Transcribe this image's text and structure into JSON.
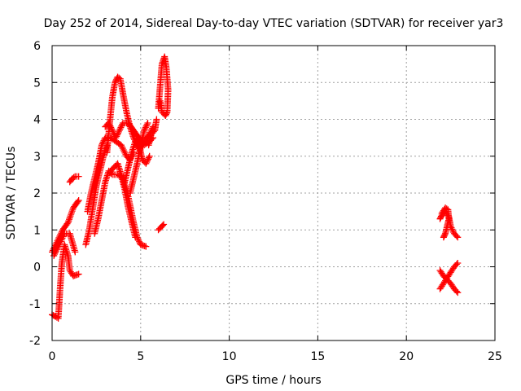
{
  "chart_data": {
    "type": "scatter",
    "title": "Day 252 of 2014, Sidereal Day-to-day VTEC variation (SDTVAR) for receiver yar3",
    "xlabel": "GPS time / hours",
    "ylabel": "SDTVAR / TECUs",
    "xlim": [
      0,
      25
    ],
    "ylim": [
      -2,
      6
    ],
    "xticks": [
      "0",
      "5",
      "10",
      "15",
      "20",
      "25"
    ],
    "yticks": [
      "-2",
      "-1",
      "0",
      "1",
      "2",
      "3",
      "4",
      "5",
      "6"
    ],
    "grid": true,
    "marker": "+",
    "color": "#ff0000",
    "tracks": [
      [
        [
          0.0,
          0.4
        ],
        [
          0.3,
          0.7
        ],
        [
          0.6,
          1.0
        ],
        [
          0.9,
          1.2
        ],
        [
          1.2,
          1.6
        ],
        [
          1.5,
          1.8
        ]
      ],
      [
        [
          0.1,
          0.3
        ],
        [
          0.4,
          0.6
        ],
        [
          0.7,
          0.9
        ],
        [
          1.0,
          0.9
        ],
        [
          1.3,
          0.4
        ]
      ],
      [
        [
          0.0,
          -1.3
        ],
        [
          0.2,
          -1.35
        ],
        [
          0.35,
          -1.4
        ],
        [
          0.45,
          -0.6
        ],
        [
          0.55,
          0.1
        ],
        [
          0.7,
          0.6
        ],
        [
          0.9,
          0.3
        ],
        [
          1.0,
          -0.1
        ],
        [
          1.2,
          -0.25
        ],
        [
          1.5,
          -0.2
        ]
      ],
      [
        [
          1.0,
          2.3
        ],
        [
          1.15,
          2.4
        ],
        [
          1.3,
          2.45
        ],
        [
          1.5,
          2.45
        ]
      ],
      [
        [
          1.9,
          0.6
        ],
        [
          2.1,
          1.0
        ],
        [
          2.3,
          1.6
        ],
        [
          2.5,
          2.2
        ],
        [
          2.7,
          2.6
        ],
        [
          2.9,
          3.0
        ],
        [
          3.1,
          3.3
        ]
      ],
      [
        [
          2.0,
          1.5
        ],
        [
          2.2,
          2.0
        ],
        [
          2.4,
          2.4
        ],
        [
          2.6,
          2.8
        ],
        [
          2.8,
          3.3
        ],
        [
          3.0,
          3.5
        ],
        [
          3.3,
          3.5
        ],
        [
          3.6,
          3.4
        ],
        [
          3.9,
          3.3
        ],
        [
          4.2,
          3.0
        ],
        [
          4.4,
          2.9
        ],
        [
          4.6,
          3.1
        ]
      ],
      [
        [
          2.4,
          0.9
        ],
        [
          2.6,
          1.3
        ],
        [
          2.8,
          1.8
        ],
        [
          3.0,
          2.3
        ],
        [
          3.2,
          2.6
        ],
        [
          3.4,
          2.5
        ],
        [
          3.7,
          2.5
        ],
        [
          4.0,
          2.4
        ],
        [
          4.3,
          1.9
        ],
        [
          4.6,
          1.2
        ],
        [
          4.8,
          0.8
        ],
        [
          5.0,
          0.6
        ],
        [
          5.3,
          0.55
        ]
      ],
      [
        [
          3.1,
          3.1
        ],
        [
          3.25,
          3.9
        ],
        [
          3.4,
          4.6
        ],
        [
          3.55,
          5.0
        ],
        [
          3.7,
          5.15
        ],
        [
          3.85,
          5.1
        ],
        [
          4.0,
          4.7
        ],
        [
          4.2,
          4.2
        ],
        [
          4.4,
          3.8
        ],
        [
          4.6,
          3.5
        ],
        [
          4.9,
          3.2
        ],
        [
          5.2,
          3.4
        ],
        [
          5.5,
          3.6
        ],
        [
          5.7,
          3.8
        ]
      ],
      [
        [
          3.0,
          3.8
        ],
        [
          3.2,
          3.9
        ],
        [
          3.4,
          3.7
        ],
        [
          3.6,
          3.5
        ],
        [
          3.8,
          3.7
        ],
        [
          4.0,
          3.9
        ],
        [
          4.3,
          3.9
        ],
        [
          4.6,
          3.7
        ],
        [
          4.9,
          3.5
        ],
        [
          5.2,
          3.3
        ],
        [
          5.5,
          3.4
        ],
        [
          5.7,
          3.5
        ]
      ],
      [
        [
          3.3,
          2.6
        ],
        [
          3.5,
          2.7
        ],
        [
          3.7,
          2.8
        ],
        [
          3.9,
          2.5
        ],
        [
          4.1,
          2.1
        ],
        [
          4.3,
          1.6
        ],
        [
          4.5,
          1.2
        ],
        [
          4.7,
          0.8
        ]
      ],
      [
        [
          4.1,
          2.3
        ],
        [
          4.3,
          2.7
        ],
        [
          4.5,
          3.1
        ],
        [
          4.7,
          3.4
        ],
        [
          4.9,
          3.5
        ],
        [
          5.0,
          3.1
        ],
        [
          5.1,
          2.9
        ],
        [
          5.3,
          2.8
        ],
        [
          5.5,
          3.0
        ]
      ],
      [
        [
          4.4,
          2.0
        ],
        [
          4.6,
          2.4
        ],
        [
          4.8,
          2.8
        ],
        [
          5.0,
          3.3
        ],
        [
          5.2,
          3.7
        ],
        [
          5.4,
          3.9
        ]
      ],
      [
        [
          5.45,
          3.3
        ],
        [
          5.6,
          3.6
        ],
        [
          5.8,
          3.7
        ],
        [
          5.9,
          4.0
        ]
      ],
      [
        [
          6.0,
          1.0
        ],
        [
          6.2,
          1.1
        ],
        [
          6.3,
          1.15
        ]
      ],
      [
        [
          6.0,
          4.3
        ],
        [
          6.1,
          4.9
        ],
        [
          6.2,
          5.5
        ],
        [
          6.35,
          5.7
        ],
        [
          6.45,
          5.4
        ],
        [
          6.55,
          4.8
        ],
        [
          6.5,
          4.2
        ],
        [
          6.4,
          4.1
        ],
        [
          6.2,
          4.2
        ],
        [
          6.1,
          4.5
        ]
      ],
      [
        [
          21.9,
          1.3
        ],
        [
          22.0,
          1.4
        ],
        [
          22.2,
          1.5
        ],
        [
          22.4,
          1.35
        ],
        [
          22.5,
          1.1
        ],
        [
          22.7,
          0.9
        ],
        [
          22.9,
          0.8
        ]
      ],
      [
        [
          22.0,
          1.45
        ],
        [
          22.2,
          1.6
        ],
        [
          22.35,
          1.55
        ],
        [
          22.4,
          1.3
        ],
        [
          22.3,
          1.1
        ],
        [
          22.2,
          0.9
        ],
        [
          22.1,
          0.8
        ]
      ],
      [
        [
          21.9,
          -0.1
        ],
        [
          22.1,
          -0.25
        ],
        [
          22.3,
          -0.35
        ],
        [
          22.5,
          -0.45
        ],
        [
          22.7,
          -0.6
        ],
        [
          22.9,
          -0.7
        ]
      ],
      [
        [
          21.9,
          -0.6
        ],
        [
          22.1,
          -0.45
        ],
        [
          22.3,
          -0.3
        ],
        [
          22.5,
          -0.15
        ],
        [
          22.7,
          0.0
        ],
        [
          22.9,
          0.1
        ]
      ]
    ]
  }
}
